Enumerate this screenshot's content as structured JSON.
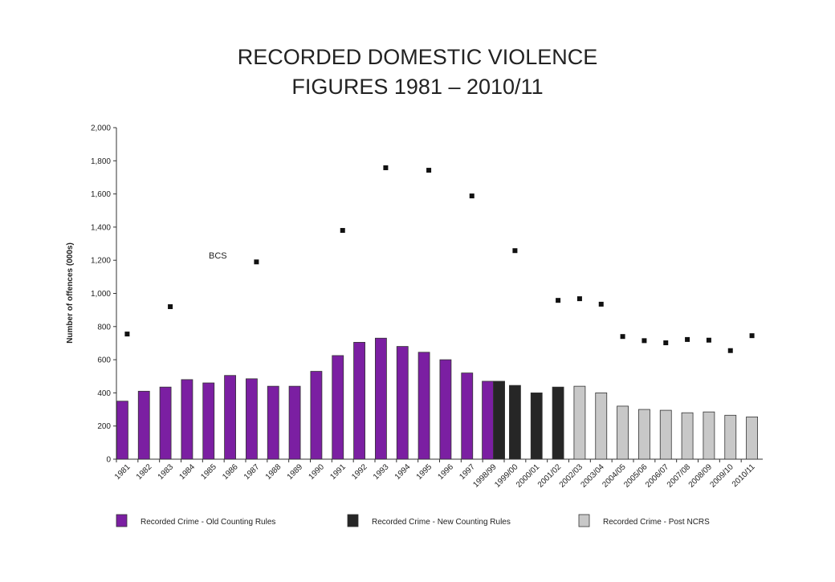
{
  "chart_data": {
    "type": "bar",
    "title": [
      "RECORDED DOMESTIC VIOLENCE",
      "FIGURES 1981 – 2010/11"
    ],
    "y_label": "Number of offences (000s)",
    "annotation": "BCS",
    "categories": [
      "1981",
      "1982",
      "1983",
      "1984",
      "1985",
      "1986",
      "1987",
      "1988",
      "1989",
      "1990",
      "1991",
      "1992",
      "1993",
      "1994",
      "1995",
      "1996",
      "1997",
      "1998/99",
      "1999/00",
      "2000/01",
      "2001/02",
      "2002/03",
      "2003/04",
      "2004/05",
      "2005/06",
      "2006/07",
      "2007/08",
      "2008/09",
      "2009/10",
      "2010/11"
    ],
    "series": [
      {
        "name": "Recorded Crime - Old Counting Rules",
        "type": "bar",
        "color": "#7b1fa2",
        "values": [
          350,
          410,
          435,
          480,
          460,
          505,
          485,
          440,
          440,
          530,
          625,
          705,
          730,
          680,
          645,
          600,
          520,
          470,
          null,
          null,
          null,
          null,
          null,
          null,
          null,
          null,
          null,
          null,
          null,
          null
        ]
      },
      {
        "name": "Recorded Crime - New Counting Rules",
        "type": "bar",
        "color": "#262626",
        "values": [
          null,
          null,
          null,
          null,
          null,
          null,
          null,
          null,
          null,
          null,
          null,
          null,
          null,
          null,
          null,
          null,
          null,
          470,
          445,
          400,
          435,
          null,
          null,
          null,
          null,
          null,
          null,
          null,
          null,
          null
        ]
      },
      {
        "name": "Recorded Crime - Post NCRS",
        "type": "bar",
        "color": "#c8c8c8",
        "values": [
          null,
          null,
          null,
          null,
          null,
          null,
          null,
          null,
          null,
          null,
          null,
          null,
          null,
          null,
          null,
          null,
          null,
          null,
          null,
          null,
          null,
          440,
          400,
          320,
          300,
          295,
          280,
          285,
          265,
          255
        ]
      },
      {
        "name": "BCS",
        "type": "line",
        "color": "#555555",
        "values": [
          755,
          null,
          920,
          null,
          null,
          null,
          1190,
          null,
          null,
          null,
          1380,
          null,
          1758,
          null,
          1743,
          null,
          1588,
          null,
          1258,
          null,
          958,
          968,
          935,
          740,
          715,
          702,
          722,
          718,
          655,
          745
        ]
      }
    ],
    "ylim": [
      0,
      2000
    ],
    "yticks": [
      0,
      200,
      400,
      600,
      800,
      {
        "value": 1000,
        "label": "1,000"
      },
      {
        "value": 1200,
        "label": "1,200"
      },
      {
        "value": 1400,
        "label": "1,400"
      },
      {
        "value": 1600,
        "label": "1,600"
      },
      {
        "value": 1800,
        "label": "1,800"
      },
      {
        "value": 2000,
        "label": "2,000"
      }
    ]
  }
}
